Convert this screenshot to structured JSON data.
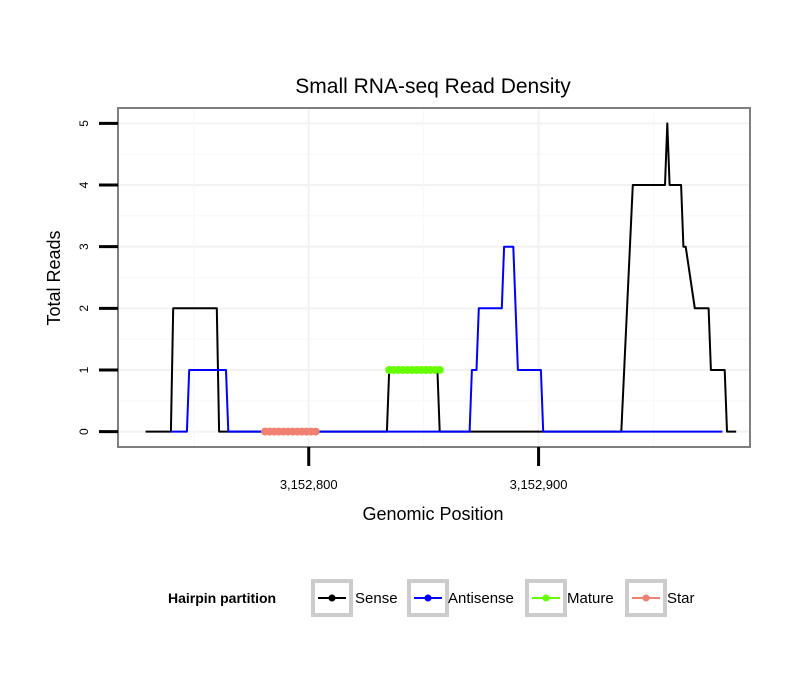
{
  "chart_data": {
    "type": "line",
    "title": "Small RNA-seq Read Density",
    "xlabel": "Genomic Position",
    "ylabel": "Total Reads",
    "xlim": [
      3152717,
      3152992
    ],
    "ylim": [
      -0.25,
      5.25
    ],
    "x_ticks": [
      3152800,
      3152900
    ],
    "x_tick_labels": [
      "3,152,800",
      "3,152,900"
    ],
    "y_ticks": [
      0,
      1,
      2,
      3,
      4,
      5
    ],
    "y_tick_labels": [
      "0",
      "1",
      "2",
      "3",
      "4",
      "5"
    ],
    "grid": true,
    "legend": {
      "title": "Hairpin partition",
      "position": "bottom",
      "entries": [
        {
          "label": "Sense",
          "color": "#000000"
        },
        {
          "label": "Antisense",
          "color": "#0000ff"
        },
        {
          "label": "Mature",
          "color": "#66ff00"
        },
        {
          "label": "Star",
          "color": "#f08070"
        }
      ]
    },
    "series": [
      {
        "name": "Sense",
        "color": "#000000",
        "width": 2,
        "markers": false,
        "x": [
          3152729,
          3152740,
          3152741,
          3152760,
          3152761,
          3152834,
          3152835,
          3152856,
          3152857,
          3152936,
          3152941,
          3152955,
          3152956,
          3152957,
          3152962,
          3152963,
          3152964,
          3152968,
          3152974,
          3152975,
          3152981,
          3152982,
          3152986
        ],
        "y": [
          0,
          0,
          2,
          2,
          0,
          0,
          1,
          1,
          0,
          0,
          4,
          4,
          5,
          4,
          4,
          3,
          3,
          2,
          2,
          1,
          1,
          0,
          0
        ]
      },
      {
        "name": "Antisense",
        "color": "#0000ff",
        "width": 2,
        "markers": false,
        "x": [
          3152740,
          3152747,
          3152748,
          3152764,
          3152765,
          3152769,
          3152870,
          3152871,
          3152873,
          3152874,
          3152884,
          3152885,
          3152889,
          3152890,
          3152891,
          3152901,
          3152902,
          3152944,
          3152945,
          3152980
        ],
        "y": [
          0,
          0,
          1,
          1,
          0,
          0,
          0,
          1,
          1,
          2,
          2,
          3,
          3,
          2,
          1,
          1,
          0,
          0,
          0,
          0
        ]
      },
      {
        "name": "Mature",
        "color": "#66ff00",
        "width": 2.5,
        "markers": true,
        "x": [
          3152835,
          3152837,
          3152839,
          3152841,
          3152843,
          3152845,
          3152847,
          3152849,
          3152851,
          3152853,
          3152855,
          3152857
        ],
        "y": [
          1,
          1,
          1,
          1,
          1,
          1,
          1,
          1,
          1,
          1,
          1,
          1
        ]
      },
      {
        "name": "Star",
        "color": "#f08070",
        "width": 2.5,
        "markers": true,
        "x": [
          3152781,
          3152783,
          3152785,
          3152787,
          3152789,
          3152791,
          3152793,
          3152795,
          3152797,
          3152799,
          3152801,
          3152803
        ],
        "y": [
          0,
          0,
          0,
          0,
          0,
          0,
          0,
          0,
          0,
          0,
          0,
          0
        ]
      }
    ]
  }
}
